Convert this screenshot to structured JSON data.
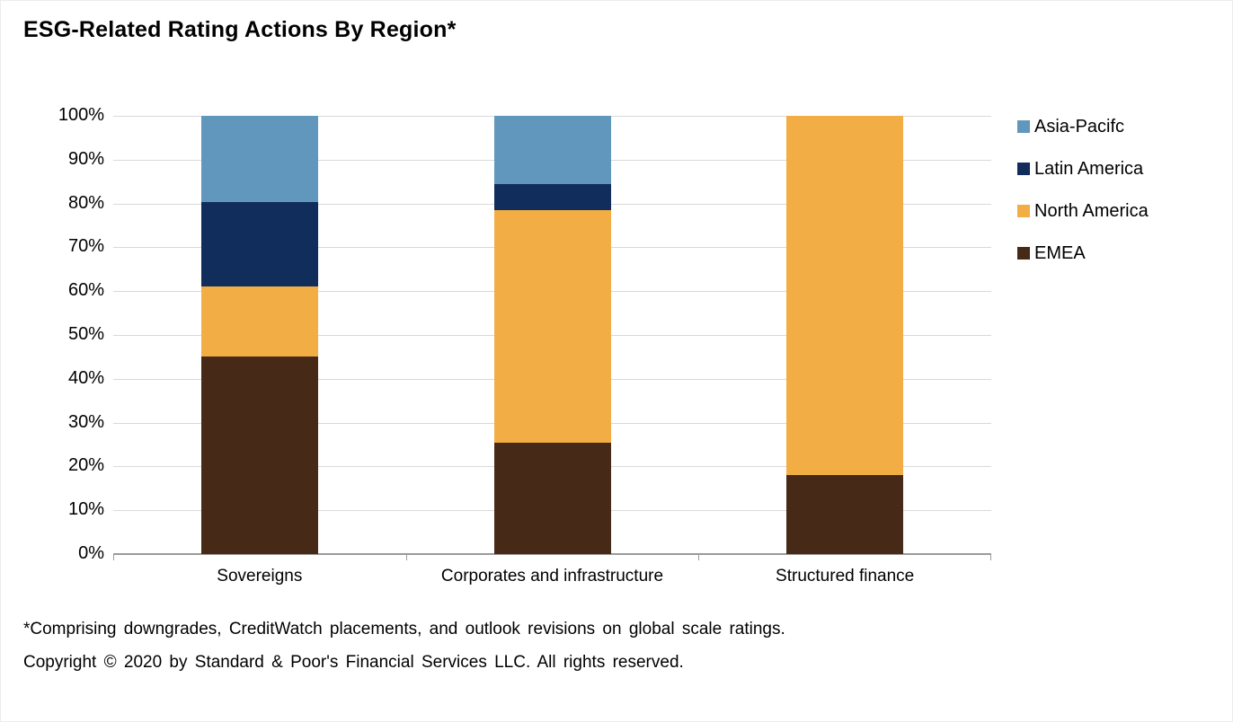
{
  "title": "ESG-Related Rating Actions By Region*",
  "chart_data": {
    "type": "bar",
    "stacked": true,
    "percent_stacked": true,
    "title": "ESG-Related Rating Actions By Region*",
    "categories": [
      "Sovereigns",
      "Corporates and infrastructure",
      "Structured finance"
    ],
    "series": [
      {
        "name": "EMEA",
        "color": "#462a17",
        "values": [
          45.0,
          25.4,
          18.0
        ]
      },
      {
        "name": "North America",
        "color": "#f2ae45",
        "values": [
          16.0,
          53.0,
          82.0
        ]
      },
      {
        "name": "Latin America",
        "color": "#102d5c",
        "values": [
          19.4,
          6.0,
          0.0
        ]
      },
      {
        "name": "Asia-Pacifc",
        "color": "#6197bd",
        "values": [
          19.6,
          15.6,
          0.0
        ]
      }
    ],
    "legend": [
      "Asia-Pacifc",
      "Latin America",
      "North America",
      "EMEA"
    ],
    "legend_position": "right",
    "y_ticks": [
      "100%",
      "90%",
      "80%",
      "70%",
      "60%",
      "50%",
      "40%",
      "30%",
      "20%",
      "10%",
      "0%"
    ],
    "ylim": [
      0,
      100
    ],
    "grid": "horizontal",
    "gridline_color": "#d9d9d9",
    "axis_color": "#9b9b9b"
  },
  "footnotes": {
    "asterisk": "*Comprising downgrades, CreditWatch placements, and outlook revisions on global scale ratings.",
    "copyright": "Copyright © 2020 by Standard & Poor's Financial Services LLC. All rights reserved."
  }
}
